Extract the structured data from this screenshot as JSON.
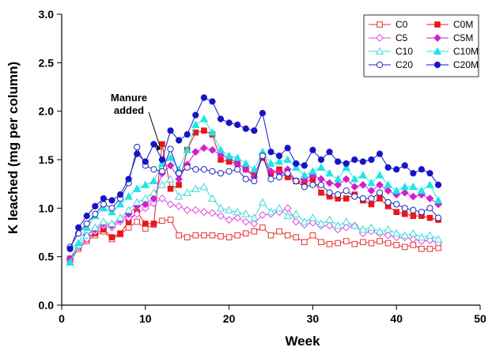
{
  "chart_data": {
    "type": "line",
    "title": "",
    "xlabel": "Week",
    "ylabel": "K leached (mg per column)",
    "xlim": [
      0,
      50
    ],
    "ylim": [
      0.0,
      3.0
    ],
    "xticks": [
      "0",
      "10",
      "20",
      "30",
      "40",
      "50"
    ],
    "yticks": [
      "0.0",
      "0.5",
      "1.0",
      "1.5",
      "2.0",
      "2.5",
      "3.0"
    ],
    "grid": false,
    "legend_position": "top-right",
    "x": [
      1,
      2,
      3,
      4,
      5,
      6,
      7,
      8,
      9,
      10,
      11,
      12,
      13,
      14,
      15,
      16,
      17,
      18,
      19,
      20,
      21,
      22,
      23,
      24,
      25,
      26,
      27,
      28,
      29,
      30,
      31,
      32,
      33,
      34,
      35,
      36,
      37,
      38,
      39,
      40,
      41,
      42,
      43,
      44,
      45
    ],
    "series": [
      {
        "name": "C0",
        "color": "#e8312c",
        "marker": "square",
        "filled": false,
        "values": [
          0.45,
          0.58,
          0.66,
          0.72,
          0.76,
          0.68,
          0.73,
          0.8,
          0.86,
          0.79,
          0.83,
          0.87,
          0.88,
          0.72,
          0.7,
          0.72,
          0.72,
          0.72,
          0.71,
          0.7,
          0.72,
          0.74,
          0.76,
          0.8,
          0.72,
          0.76,
          0.72,
          0.7,
          0.65,
          0.72,
          0.65,
          0.63,
          0.64,
          0.66,
          0.63,
          0.65,
          0.64,
          0.66,
          0.64,
          0.62,
          0.6,
          0.62,
          0.58,
          0.58,
          0.59
        ]
      },
      {
        "name": "C0M",
        "color": "#e8181a",
        "marker": "square",
        "filled": true,
        "values": [
          0.48,
          0.6,
          0.68,
          0.74,
          0.78,
          0.7,
          0.74,
          0.86,
          0.96,
          0.84,
          0.84,
          1.66,
          1.2,
          1.24,
          1.6,
          1.78,
          1.8,
          1.76,
          1.5,
          1.48,
          1.46,
          1.4,
          1.34,
          1.52,
          1.36,
          1.4,
          1.32,
          1.28,
          1.26,
          1.3,
          1.16,
          1.12,
          1.1,
          1.1,
          1.14,
          1.08,
          1.04,
          1.1,
          1.02,
          0.96,
          0.94,
          0.92,
          0.92,
          0.9,
          0.88
        ]
      },
      {
        "name": "C5",
        "color": "#e24be2",
        "marker": "diamond",
        "filled": false,
        "values": [
          0.47,
          0.6,
          0.68,
          0.76,
          0.82,
          0.8,
          0.86,
          0.9,
          0.94,
          1.0,
          1.05,
          1.1,
          1.04,
          1.02,
          0.98,
          0.98,
          0.96,
          0.95,
          0.92,
          0.88,
          0.9,
          0.86,
          0.84,
          0.93,
          0.94,
          0.96,
          1.0,
          0.86,
          0.83,
          0.85,
          0.82,
          0.82,
          0.78,
          0.8,
          0.82,
          0.74,
          0.76,
          0.74,
          0.72,
          0.7,
          0.7,
          0.68,
          0.66,
          0.67,
          0.64
        ]
      },
      {
        "name": "C5M",
        "color": "#d21ed2",
        "marker": "diamond",
        "filled": true,
        "values": [
          0.48,
          0.62,
          0.72,
          0.78,
          0.84,
          0.82,
          0.88,
          0.94,
          1.02,
          1.04,
          1.1,
          1.36,
          1.44,
          1.3,
          1.45,
          1.58,
          1.62,
          1.6,
          1.55,
          1.52,
          1.46,
          1.4,
          1.32,
          1.56,
          1.38,
          1.36,
          1.4,
          1.28,
          1.3,
          1.34,
          1.3,
          1.26,
          1.24,
          1.3,
          1.22,
          1.24,
          1.18,
          1.24,
          1.18,
          1.14,
          1.16,
          1.12,
          1.14,
          1.1,
          1.04
        ]
      },
      {
        "name": "C10",
        "color": "#3fd9d9",
        "marker": "triangle",
        "filled": false,
        "values": [
          0.44,
          0.62,
          0.72,
          0.8,
          0.86,
          0.84,
          0.9,
          0.98,
          1.06,
          1.1,
          1.16,
          1.24,
          1.3,
          1.12,
          1.16,
          1.2,
          1.22,
          1.1,
          1.0,
          0.98,
          0.96,
          0.94,
          0.9,
          1.06,
          0.96,
          1.0,
          0.92,
          0.94,
          0.86,
          0.9,
          0.84,
          0.88,
          0.82,
          0.86,
          0.82,
          0.78,
          0.8,
          0.76,
          0.78,
          0.74,
          0.72,
          0.74,
          0.7,
          0.72,
          0.68
        ]
      },
      {
        "name": "C10M",
        "color": "#1ee6e6",
        "marker": "triangle",
        "filled": true,
        "values": [
          0.44,
          0.64,
          0.8,
          0.92,
          1.0,
          0.96,
          1.04,
          1.12,
          1.2,
          1.24,
          1.28,
          1.46,
          1.52,
          1.4,
          1.6,
          1.86,
          1.92,
          1.78,
          1.6,
          1.54,
          1.52,
          1.46,
          1.4,
          1.58,
          1.46,
          1.48,
          1.5,
          1.42,
          1.34,
          1.38,
          1.42,
          1.36,
          1.3,
          1.42,
          1.3,
          1.34,
          1.26,
          1.34,
          1.24,
          1.18,
          1.22,
          1.22,
          1.18,
          1.24,
          1.08
        ]
      },
      {
        "name": "C20",
        "color": "#1f25b8",
        "marker": "circle",
        "filled": false,
        "values": [
          0.6,
          0.74,
          0.84,
          0.94,
          1.04,
          1.0,
          1.1,
          1.26,
          1.63,
          1.44,
          1.4,
          1.38,
          1.61,
          1.36,
          1.42,
          1.4,
          1.4,
          1.38,
          1.36,
          1.38,
          1.4,
          1.3,
          1.28,
          1.54,
          1.3,
          1.32,
          1.36,
          1.28,
          1.22,
          1.24,
          1.24,
          1.16,
          1.14,
          1.18,
          1.12,
          1.1,
          1.1,
          1.16,
          1.06,
          1.04,
          1.0,
          0.98,
          0.96,
          1.0,
          0.9
        ]
      },
      {
        "name": "C20M",
        "color": "#1515c8",
        "marker": "circle",
        "filled": true,
        "values": [
          0.58,
          0.8,
          0.92,
          1.02,
          1.1,
          1.08,
          1.14,
          1.3,
          1.56,
          1.48,
          1.66,
          1.5,
          1.8,
          1.7,
          1.76,
          1.96,
          2.14,
          2.1,
          1.92,
          1.88,
          1.86,
          1.82,
          1.8,
          1.98,
          1.58,
          1.54,
          1.62,
          1.46,
          1.44,
          1.6,
          1.5,
          1.58,
          1.48,
          1.46,
          1.5,
          1.48,
          1.5,
          1.56,
          1.42,
          1.4,
          1.44,
          1.36,
          1.4,
          1.36,
          1.24
        ]
      }
    ],
    "annotation": {
      "lines": [
        "Manure",
        "added"
      ],
      "x": 12,
      "y": 1.66
    }
  }
}
